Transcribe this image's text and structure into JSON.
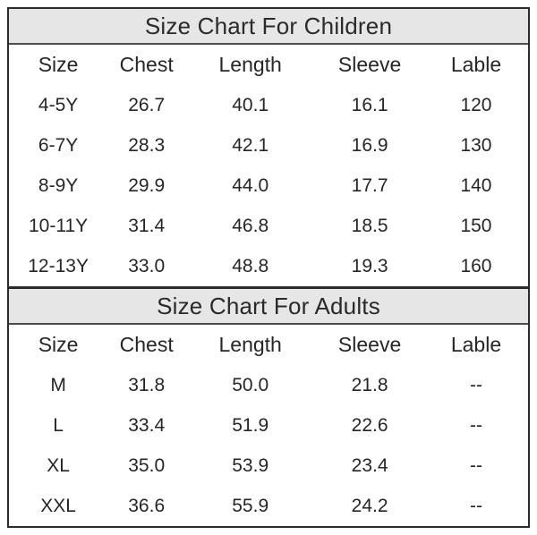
{
  "chart_data": [
    {
      "type": "table",
      "title": "Size Chart For Children",
      "columns": [
        "Size",
        "Chest",
        "Length",
        "Sleeve",
        "Lable"
      ],
      "rows": [
        [
          "4-5Y",
          "26.7",
          "40.1",
          "16.1",
          "120"
        ],
        [
          "6-7Y",
          "28.3",
          "42.1",
          "16.9",
          "130"
        ],
        [
          "8-9Y",
          "29.9",
          "44.0",
          "17.7",
          "140"
        ],
        [
          "10-11Y",
          "31.4",
          "46.8",
          "18.5",
          "150"
        ],
        [
          "12-13Y",
          "33.0",
          "48.8",
          "19.3",
          "160"
        ]
      ]
    },
    {
      "type": "table",
      "title": "Size Chart For Adults",
      "columns": [
        "Size",
        "Chest",
        "Length",
        "Sleeve",
        "Lable"
      ],
      "rows": [
        [
          "M",
          "31.8",
          "50.0",
          "21.8",
          "--"
        ],
        [
          "L",
          "33.4",
          "51.9",
          "22.6",
          "--"
        ],
        [
          "XL",
          "35.0",
          "53.9",
          "23.4",
          "--"
        ],
        [
          "XXL",
          "36.6",
          "55.9",
          "24.2",
          "--"
        ]
      ]
    }
  ],
  "colors": {
    "outer_border": "#2b2b2b",
    "band_background": "#e6e6e6",
    "band_divider": "#4d4d4d",
    "text": "#2a2a2a",
    "page_background": "#ffffff"
  }
}
